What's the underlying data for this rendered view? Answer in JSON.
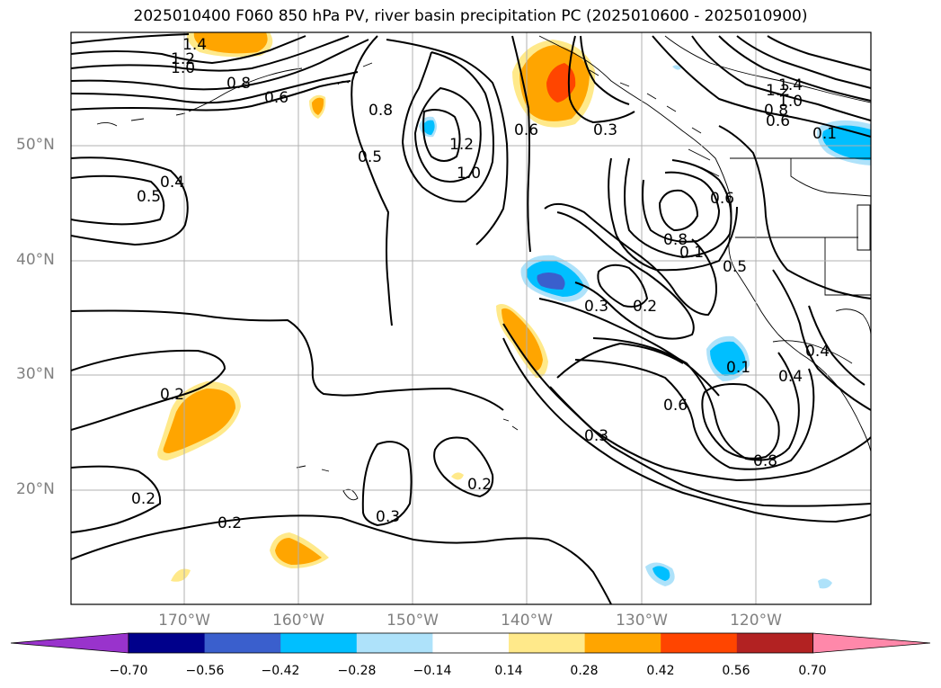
{
  "title": "2025010400 F060 850 hPa PV, river basin precipitation PC (2025010600 - 2025010900)",
  "lat_labels": [
    "50°N",
    "40°N",
    "30°N",
    "20°N"
  ],
  "lon_labels": [
    "170°W",
    "160°W",
    "150°W",
    "140°W",
    "130°W",
    "120°W"
  ],
  "contour_labels": [
    "1.4",
    "1.2",
    "1.0",
    "0.8",
    "0.6",
    "0.8",
    "1.2",
    "1.0",
    "0.5",
    "0.6",
    "0.3",
    "1.4",
    "1.2",
    "1.0",
    "0.8",
    "0.6",
    "0.1",
    "0.4",
    "0.5",
    "0.8",
    "0.1",
    "0.5",
    "0.6",
    "0.3",
    "0.2",
    "0.2",
    "0.1",
    "0.6",
    "0.4",
    "0.4",
    "0.8",
    "0.3",
    "0.2",
    "0.3",
    "0.2",
    "0.2"
  ],
  "colorbar": {
    "labels": [
      "−0.70",
      "−0.56",
      "−0.42",
      "−0.28",
      "−0.14",
      "0.14",
      "0.28",
      "0.42",
      "0.56",
      "0.70"
    ],
    "colors": [
      "#9933cc",
      "#00008b",
      "#3a5fcd",
      "#00bfff",
      "#aee2fa",
      "#ffffff",
      "#ffe98a",
      "#ffa500",
      "#ff4500",
      "#b22222",
      "#ff88aa"
    ]
  },
  "colors": {
    "gridline": "#b0b0b0",
    "axis_text": "#808080",
    "contour": "#000000",
    "land_outline": "#000000"
  }
}
